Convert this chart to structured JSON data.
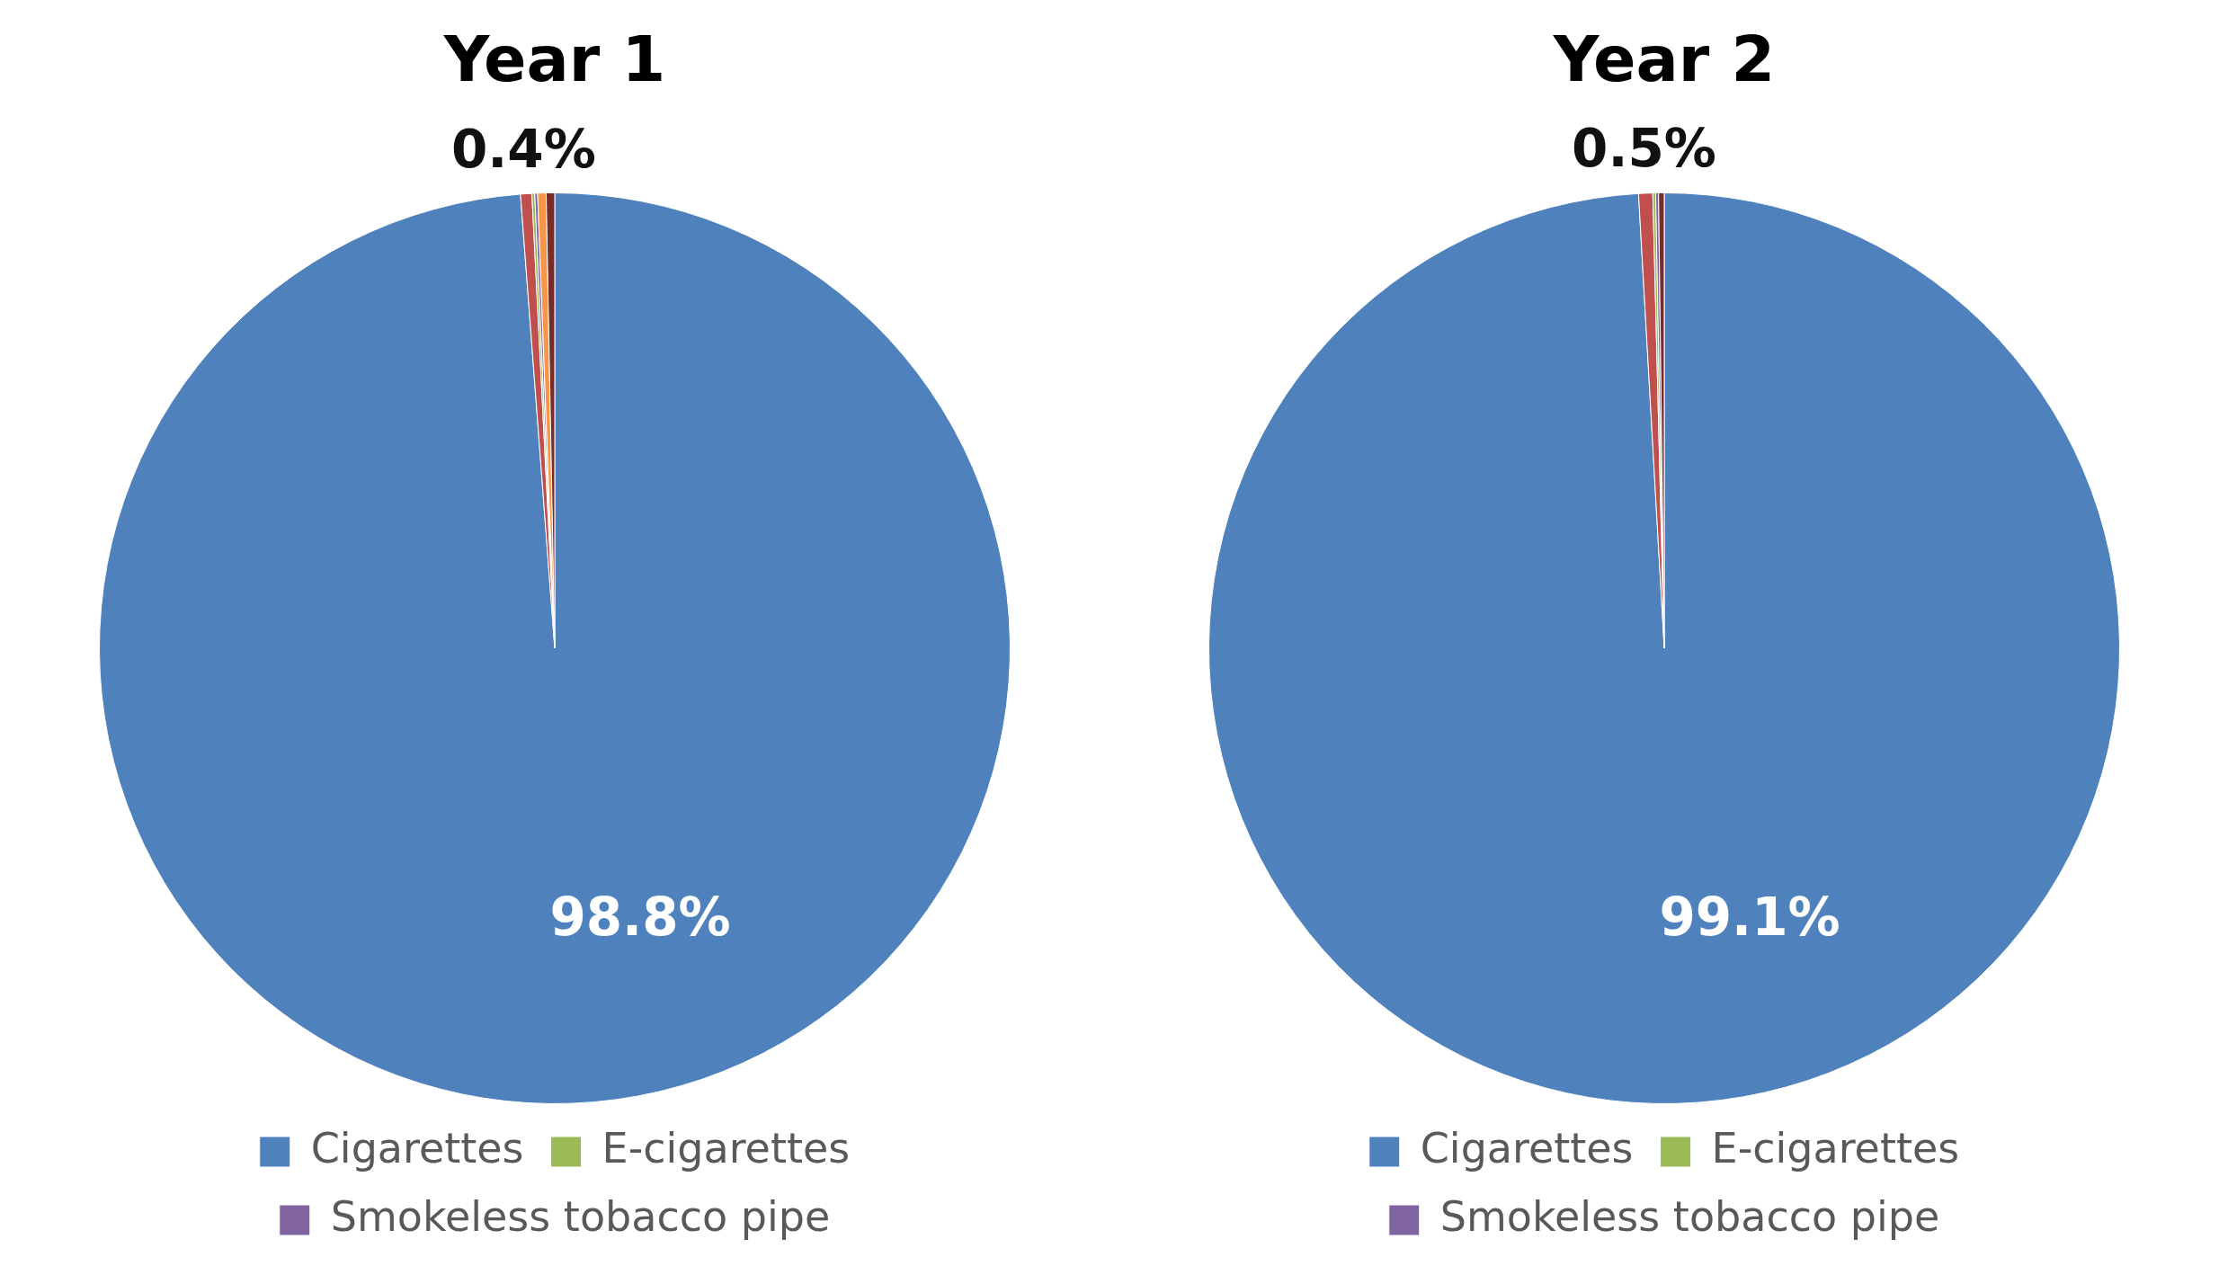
{
  "chart_data": [
    {
      "type": "pie",
      "title": "Year 1",
      "categories": [
        "Cigarettes",
        null,
        "E-cigarettes",
        "Smokeless tobacco pipe",
        null,
        null
      ],
      "values": [
        98.8,
        0.4,
        0.1,
        0.1,
        0.3,
        0.3
      ],
      "colors": [
        "#4f81bd",
        "#c0504d",
        "#9bbb59",
        "#8064a2",
        "#f79646",
        "#772c2a"
      ],
      "value_labels": [
        "98.8%",
        "0.4%",
        null,
        null,
        null,
        null
      ],
      "legend": "bottom"
    },
    {
      "type": "pie",
      "title": "Year 2",
      "categories": [
        "Cigarettes",
        null,
        "E-cigarettes",
        "Smokeless tobacco pipe",
        null,
        null
      ],
      "values": [
        99.1,
        0.5,
        0.1,
        0.1,
        0,
        0.2
      ],
      "colors": [
        "#4f81bd",
        "#c0504d",
        "#9bbb59",
        "#8064a2",
        "#f79646",
        "#772c2a"
      ],
      "value_labels": [
        "99.1%",
        "0.5%",
        null,
        null,
        null,
        null
      ],
      "legend": "bottom"
    }
  ]
}
